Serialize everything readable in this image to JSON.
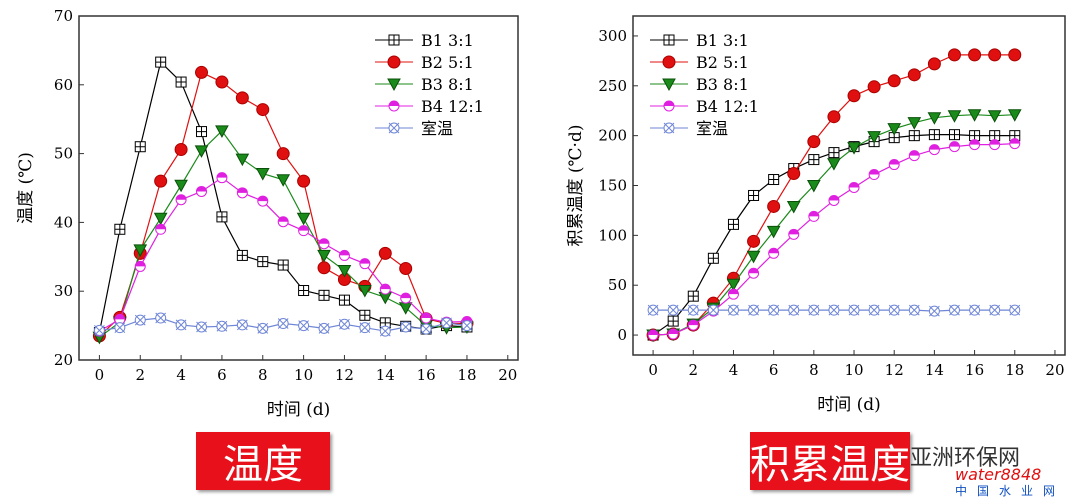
{
  "chart_data": [
    {
      "type": "line",
      "xlabel": "时间 (d)",
      "ylabel": "温度 (℃)",
      "xlim": [
        -1,
        20.5
      ],
      "ylim": [
        20,
        70
      ],
      "xticks": [
        0,
        2,
        4,
        6,
        8,
        10,
        12,
        14,
        16,
        18,
        20
      ],
      "yticks": [
        20,
        30,
        40,
        50,
        60,
        70
      ],
      "grid": false,
      "legend": "top-right",
      "x": [
        0,
        1,
        2,
        3,
        4,
        5,
        6,
        7,
        8,
        9,
        10,
        11,
        12,
        13,
        14,
        15,
        16,
        17,
        18
      ],
      "series": [
        {
          "name": "B1  3:1",
          "color": "#000000",
          "marker": "square-cross",
          "values": [
            24,
            39,
            51,
            63.3,
            60.4,
            53.2,
            40.8,
            35.2,
            34.3,
            33.8,
            30.1,
            29.4,
            28.7,
            26.5,
            25.4,
            24.9,
            24.5,
            25,
            24.8
          ]
        },
        {
          "name": "B2  5:1",
          "color": "#e01010",
          "marker": "circle",
          "values": [
            23.5,
            26.2,
            35.5,
            46,
            50.6,
            61.8,
            60.4,
            58.1,
            56.4,
            50,
            46,
            33.4,
            31.7,
            30.7,
            35.5,
            33.3,
            26,
            25.3,
            25.3
          ]
        },
        {
          "name": "B3  8:1",
          "color": "#1a8a1a",
          "marker": "triangle-down",
          "values": [
            23.3,
            25.5,
            36,
            40.6,
            45.4,
            50.4,
            53.3,
            49.2,
            47.1,
            46.2,
            40.6,
            35.2,
            33,
            30.1,
            29.1,
            27.6,
            25,
            24.7,
            24.8
          ]
        },
        {
          "name": "B4 12:1",
          "color": "#e020e0",
          "marker": "half-circle",
          "values": [
            24.2,
            25.9,
            33.6,
            39,
            43.3,
            44.5,
            46.5,
            44.3,
            43.1,
            40.1,
            38.8,
            36.9,
            35.2,
            34,
            30.3,
            29,
            26.1,
            25.5,
            25.6
          ]
        },
        {
          "name": "室温",
          "color": "#6f86d6",
          "marker": "circle-x",
          "values": [
            24.3,
            24.7,
            25.8,
            26.1,
            25.1,
            24.8,
            24.9,
            25.1,
            24.6,
            25.3,
            25,
            24.6,
            25.2,
            24.7,
            24.2,
            24.8,
            24.5,
            25.4,
            25
          ]
        }
      ]
    },
    {
      "type": "line",
      "xlabel": "时间 (d)",
      "ylabel": "积累温度 (℃·d)",
      "xlim": [
        -1,
        20.5
      ],
      "ylim": [
        -20,
        320
      ],
      "xticks": [
        0,
        2,
        4,
        6,
        8,
        10,
        12,
        14,
        16,
        18,
        20
      ],
      "yticks": [
        0,
        50,
        100,
        150,
        200,
        250,
        300
      ],
      "grid": false,
      "legend": "top-left",
      "x": [
        0,
        1,
        2,
        3,
        4,
        5,
        6,
        7,
        8,
        9,
        10,
        11,
        12,
        13,
        14,
        15,
        16,
        17,
        18
      ],
      "series": [
        {
          "name": "B1  3:1",
          "color": "#000000",
          "marker": "square-cross",
          "values": [
            0,
            14,
            39,
            77,
            111,
            140,
            156,
            167,
            176,
            183,
            189,
            194,
            198,
            200,
            201,
            201,
            200,
            200,
            200
          ]
        },
        {
          "name": "B2  5:1",
          "color": "#e01010",
          "marker": "circle",
          "values": [
            0,
            1,
            10,
            32,
            57,
            94,
            129,
            162,
            194,
            219,
            240,
            249,
            255,
            261,
            272,
            281,
            281,
            281,
            281
          ]
        },
        {
          "name": "B3  8:1",
          "color": "#1a8a1a",
          "marker": "triangle-down",
          "values": [
            0,
            1,
            11,
            27,
            51,
            79,
            104,
            129,
            150,
            172,
            188,
            199,
            207,
            213,
            218,
            220,
            221,
            220,
            221
          ]
        },
        {
          "name": "B4 12:1",
          "color": "#e020e0",
          "marker": "half-circle",
          "values": [
            0,
            1,
            10,
            24,
            41,
            62,
            82,
            101,
            119,
            135,
            148,
            161,
            171,
            180,
            186,
            189,
            191,
            191,
            192
          ]
        },
        {
          "name": "室温",
          "color": "#6f86d6",
          "marker": "circle-x",
          "values": [
            25,
            25,
            25,
            25,
            25,
            25,
            25,
            25,
            25,
            25,
            25,
            25,
            25,
            25,
            24,
            25,
            25,
            25,
            25
          ]
        }
      ]
    }
  ],
  "banners": {
    "left": "温度",
    "right": "积累温度"
  },
  "watermark": {
    "name": "亚洲环保网",
    "site": "water8848",
    "sub": "中国水业网"
  }
}
